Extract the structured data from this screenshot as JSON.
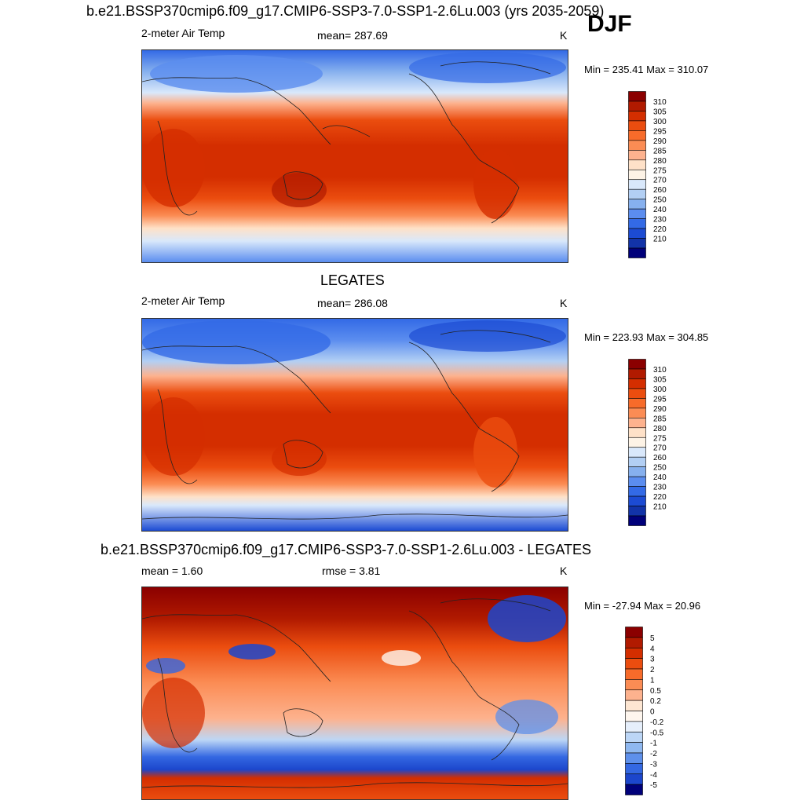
{
  "season": "DJF",
  "panels": [
    {
      "title": "b.e21.BSSP370cmip6.f09_g17.CMIP6-SSP3-7.0-SSP1-2.6Lu.003 (yrs 2035-2059)",
      "left_label": "2-meter Air Temp",
      "center_label": "mean= 287.69",
      "units": "K",
      "minmax": "Min = 235.41 Max = 310.07"
    },
    {
      "title": "LEGATES",
      "left_label": "2-meter Air Temp",
      "center_label": "mean= 286.08",
      "units": "K",
      "minmax": "Min = 223.93 Max = 304.85"
    },
    {
      "title": "b.e21.BSSP370cmip6.f09_g17.CMIP6-SSP3-7.0-SSP1-2.6Lu.003 - LEGATES",
      "left_label": "mean =   1.60",
      "center_label": "rmse =   3.81",
      "units": "K",
      "minmax": "Min = -27.94 Max =  20.96"
    }
  ],
  "chart_data": [
    {
      "type": "heatmap",
      "title": "b.e21.BSSP370cmip6.f09_g17.CMIP6-SSP3-7.0-SSP1-2.6Lu.003 (yrs 2035-2059)",
      "variable": "2-meter Air Temp",
      "units": "K",
      "mean": 287.69,
      "min": 235.41,
      "max": 310.07,
      "colorbar_labels": [
        "310",
        "305",
        "300",
        "295",
        "290",
        "285",
        "280",
        "275",
        "270",
        "260",
        "250",
        "240",
        "230",
        "220",
        "210"
      ],
      "colors": [
        "#8b0000",
        "#b11a00",
        "#d42e00",
        "#eb4d0f",
        "#f76b2a",
        "#fb8c54",
        "#fdb28e",
        "#fee1c8",
        "#fdf3e6",
        "#d9e8fb",
        "#b2cff4",
        "#86b0ee",
        "#5b8def",
        "#336ae6",
        "#1c4bd3",
        "#1233a8",
        "#00007a"
      ]
    },
    {
      "type": "heatmap",
      "title": "LEGATES",
      "variable": "2-meter Air Temp",
      "units": "K",
      "mean": 286.08,
      "min": 223.93,
      "max": 304.85,
      "colorbar_labels": [
        "310",
        "305",
        "300",
        "295",
        "290",
        "285",
        "280",
        "275",
        "270",
        "260",
        "250",
        "240",
        "230",
        "220",
        "210"
      ],
      "colors": [
        "#8b0000",
        "#b11a00",
        "#d42e00",
        "#eb4d0f",
        "#f76b2a",
        "#fb8c54",
        "#fdb28e",
        "#fee1c8",
        "#fdf3e6",
        "#d9e8fb",
        "#b2cff4",
        "#86b0ee",
        "#5b8def",
        "#336ae6",
        "#1c4bd3",
        "#1233a8",
        "#00007a"
      ]
    },
    {
      "type": "heatmap",
      "title": "b.e21.BSSP370cmip6.f09_g17.CMIP6-SSP3-7.0-SSP1-2.6Lu.003 - LEGATES",
      "units": "K",
      "mean": 1.6,
      "rmse": 3.81,
      "min": -27.94,
      "max": 20.96,
      "colorbar_labels": [
        "5",
        "4",
        "3",
        "2",
        "1",
        "0.5",
        "0.2",
        "0",
        "-0.2",
        "-0.5",
        "-1",
        "-2",
        "-3",
        "-4",
        "-5"
      ],
      "colors": [
        "#8b0000",
        "#b11a00",
        "#d42e00",
        "#eb4d0f",
        "#f76b2a",
        "#fb8c54",
        "#fdb28e",
        "#fde6d2",
        "#fef6ee",
        "#e6effb",
        "#bcd6f6",
        "#8fb8f0",
        "#5e90eb",
        "#3468e2",
        "#1c46cc",
        "#00007a"
      ]
    }
  ]
}
